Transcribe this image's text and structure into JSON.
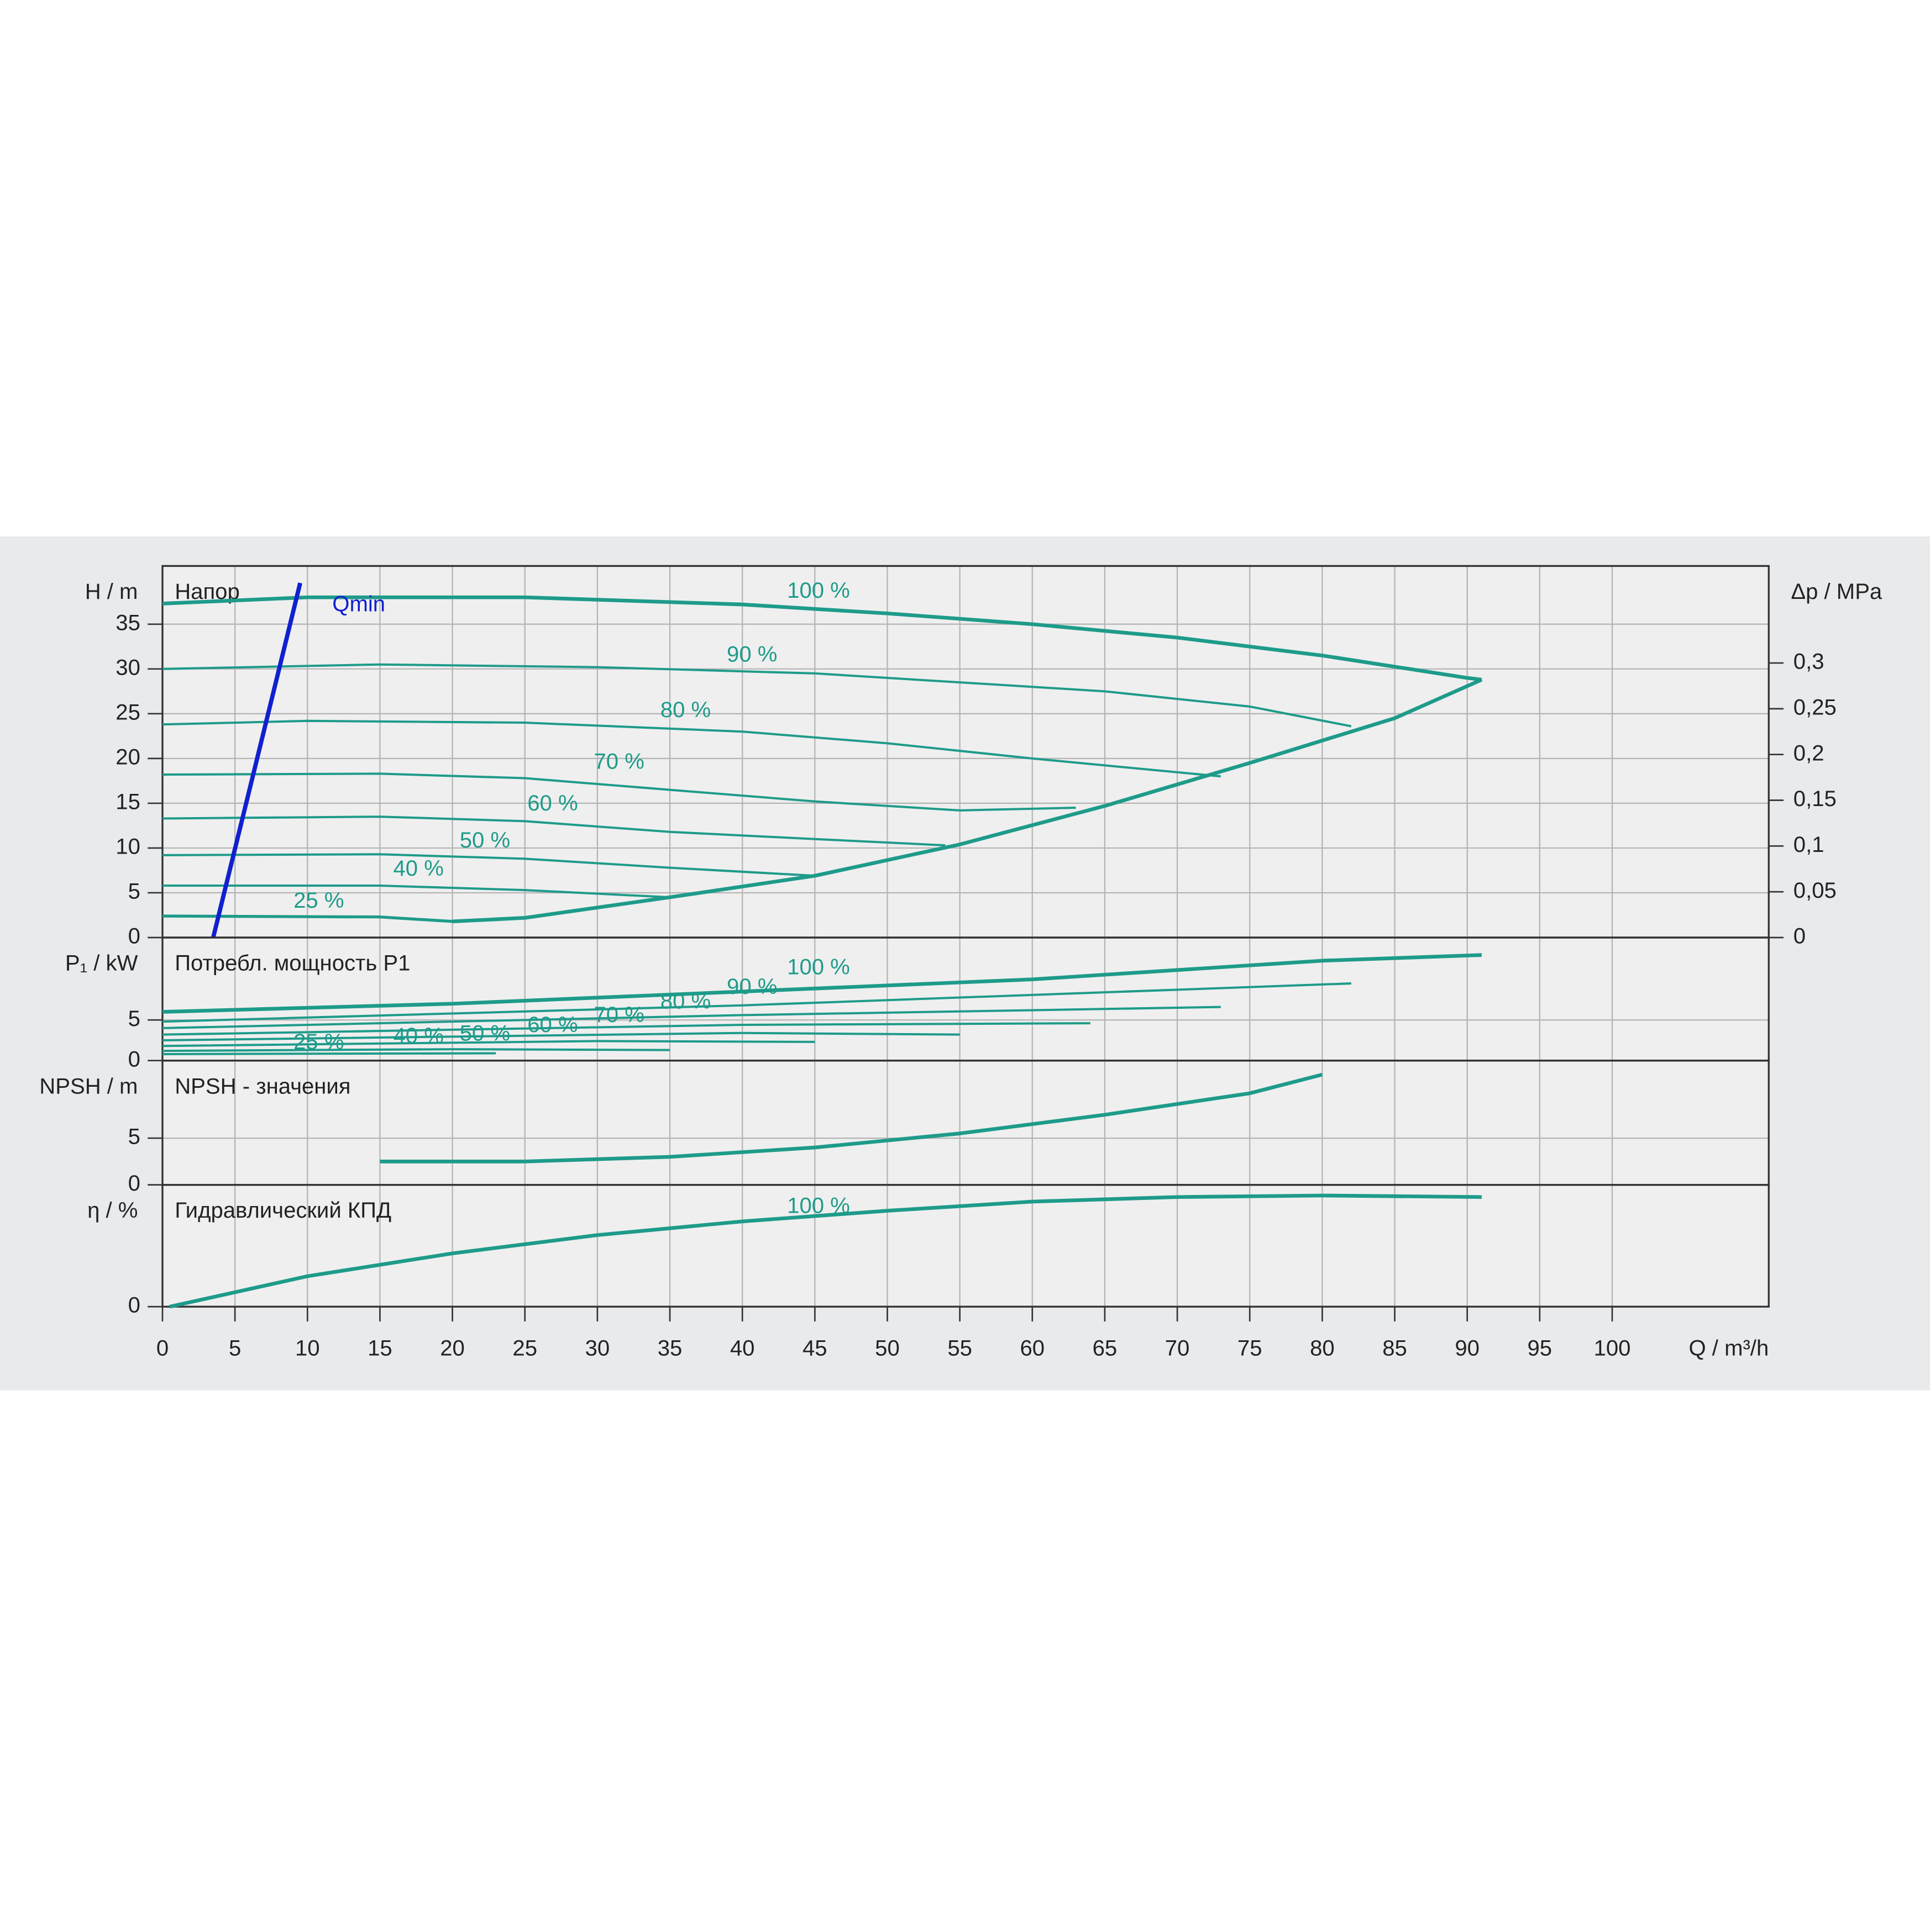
{
  "chart_data": [
    {
      "type": "line",
      "title": "Напор",
      "ylabel": "H / m",
      "y2label": "Δp / MPa",
      "xlim": [
        0,
        110.8
      ],
      "ylim": [
        0,
        41.5
      ],
      "yticks": [
        0,
        5,
        10,
        15,
        20,
        25,
        30,
        35
      ],
      "y2lim": [
        0,
        0.406
      ],
      "y2ticks": [
        0,
        {
          "value": 0.05,
          "label": "0,05"
        },
        {
          "value": 0.1,
          "label": "0,1"
        },
        {
          "value": 0.15,
          "label": "0,15"
        },
        {
          "value": 0.2,
          "label": "0,2"
        },
        {
          "value": 0.25,
          "label": "0,25"
        },
        {
          "value": 0.3,
          "label": "0,3"
        }
      ],
      "grid": true,
      "series": [
        {
          "name": "100 %",
          "color": "#1e9b8a",
          "line_width": 3,
          "x": [
            0,
            10,
            25,
            40,
            50,
            60,
            70,
            80,
            90,
            91
          ],
          "values": [
            37.3,
            38,
            38,
            37.2,
            36.2,
            35,
            33.5,
            31.5,
            29,
            28.8
          ]
        },
        {
          "name": "90 %",
          "color": "#1e9b8a",
          "line_width": 1.8,
          "x": [
            0,
            15,
            30,
            45,
            55,
            65,
            75,
            82
          ],
          "values": [
            30,
            30.5,
            30.2,
            29.5,
            28.5,
            27.5,
            25.8,
            23.6
          ]
        },
        {
          "name": "80 %",
          "color": "#1e9b8a",
          "line_width": 1.8,
          "x": [
            0,
            10,
            25,
            40,
            50,
            60,
            73
          ],
          "values": [
            23.8,
            24.2,
            24,
            23,
            21.7,
            20,
            18
          ]
        },
        {
          "name": "70 %",
          "color": "#1e9b8a",
          "line_width": 1.8,
          "x": [
            0,
            15,
            25,
            35,
            45,
            55,
            63
          ],
          "values": [
            18.2,
            18.3,
            17.8,
            16.5,
            15.2,
            14.2,
            14.5
          ]
        },
        {
          "name": "60 %",
          "color": "#1e9b8a",
          "line_width": 1.8,
          "x": [
            0,
            15,
            25,
            35,
            45,
            54
          ],
          "values": [
            13.3,
            13.5,
            13,
            11.8,
            11,
            10.3
          ]
        },
        {
          "name": "50 %",
          "color": "#1e9b8a",
          "line_width": 1.8,
          "x": [
            0,
            15,
            25,
            35,
            45
          ],
          "values": [
            9.2,
            9.3,
            8.8,
            7.8,
            6.9
          ]
        },
        {
          "name": "40 %",
          "color": "#1e9b8a",
          "line_width": 1.8,
          "x": [
            0,
            15,
            25,
            35
          ],
          "values": [
            5.8,
            5.8,
            5.3,
            4.5
          ]
        },
        {
          "name": "25 %",
          "color": "#1e9b8a",
          "line_width": 2.4,
          "x": [
            0,
            15,
            20,
            23
          ],
          "values": [
            2.4,
            2.3,
            1.8,
            2
          ]
        },
        {
          "color": "#1e9b8a",
          "line_width": 3,
          "x": [
            20,
            25,
            35,
            45,
            55,
            65,
            75,
            85,
            91
          ],
          "values": [
            1.8,
            2.2,
            4.5,
            6.9,
            10.4,
            14.7,
            19.5,
            24.5,
            28.8
          ]
        },
        {
          "name": "Qmin",
          "color": "#1020d0",
          "line_width": 3.5,
          "x": [
            3.5,
            9.5
          ],
          "values": [
            0,
            39.6
          ]
        }
      ]
    },
    {
      "type": "line",
      "title": "Потребл. мощность P1",
      "ylabel": "P₁ / kW",
      "xlim": [
        0,
        110.8
      ],
      "ylim": [
        0,
        15.15
      ],
      "yticks": [
        0,
        5
      ],
      "grid": true,
      "series": [
        {
          "name": "100 %",
          "color": "#1e9b8a",
          "line_width": 3,
          "x": [
            0,
            20,
            40,
            60,
            80,
            91
          ],
          "values": [
            6,
            7,
            8.5,
            10,
            12.3,
            13
          ]
        },
        {
          "name": "90 %",
          "color": "#1e9b8a",
          "line_width": 1.8,
          "x": [
            0,
            40,
            82
          ],
          "values": [
            4.8,
            6.8,
            9.5
          ]
        },
        {
          "name": "80 %",
          "color": "#1e9b8a",
          "line_width": 1.8,
          "x": [
            0,
            40,
            73
          ],
          "values": [
            4,
            5.6,
            6.6
          ]
        },
        {
          "name": "70 %",
          "color": "#1e9b8a",
          "line_width": 1.8,
          "x": [
            0,
            40,
            64
          ],
          "values": [
            3.2,
            4.4,
            4.6
          ]
        },
        {
          "name": "60 %",
          "color": "#1e9b8a",
          "line_width": 1.8,
          "x": [
            0,
            40,
            55
          ],
          "values": [
            2.5,
            3.4,
            3.2
          ]
        },
        {
          "name": "50 %",
          "color": "#1e9b8a",
          "line_width": 1.8,
          "x": [
            0,
            30,
            45
          ],
          "values": [
            1.8,
            2.4,
            2.3
          ]
        },
        {
          "name": "40 %",
          "color": "#1e9b8a",
          "line_width": 1.8,
          "x": [
            0,
            20,
            35
          ],
          "values": [
            1.2,
            1.4,
            1.3
          ]
        },
        {
          "name": "25 %",
          "color": "#1e9b8a",
          "line_width": 1.8,
          "x": [
            0,
            23
          ],
          "values": [
            0.8,
            0.9
          ]
        }
      ]
    },
    {
      "type": "line",
      "title": "NPSH - значения",
      "ylabel": "NPSH / m",
      "xlim": [
        0,
        110.8
      ],
      "ylim": [
        0,
        13.3
      ],
      "yticks": [
        0,
        5
      ],
      "grid": true,
      "series": [
        {
          "color": "#1e9b8a",
          "line_width": 3,
          "x": [
            15,
            25,
            35,
            45,
            55,
            65,
            75,
            80
          ],
          "values": [
            2.5,
            2.5,
            3,
            4,
            5.5,
            7.5,
            9.8,
            11.8
          ]
        }
      ]
    },
    {
      "type": "line",
      "title": "Гидравлический КПД",
      "ylabel": "η / %",
      "xlabel": "Q / m³/h",
      "xlim": [
        0,
        110.8
      ],
      "ylim": [
        0,
        80
      ],
      "yticks": [
        0
      ],
      "xticks": [
        0,
        5,
        10,
        15,
        20,
        25,
        30,
        35,
        40,
        45,
        50,
        55,
        60,
        65,
        70,
        75,
        80,
        85,
        90,
        95,
        100
      ],
      "grid": true,
      "series": [
        {
          "name": "100 %",
          "color": "#1e9b8a",
          "line_width": 3,
          "x": [
            0.5,
            10,
            20,
            30,
            40,
            50,
            60,
            70,
            80,
            91
          ],
          "values": [
            0,
            20,
            35,
            47,
            56,
            63,
            69,
            72,
            73,
            72
          ]
        }
      ]
    }
  ]
}
